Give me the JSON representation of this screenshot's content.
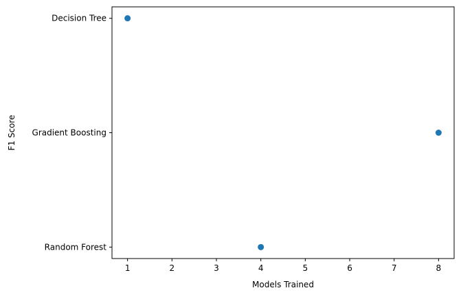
{
  "chart_data": {
    "type": "scatter",
    "title": "",
    "xlabel": "Models Trained",
    "ylabel": "F1 Score",
    "x_ticks": [
      1,
      2,
      3,
      4,
      5,
      6,
      7,
      8
    ],
    "y_categories": [
      "Random Forest",
      "Gradient Boosting",
      "Decision Tree"
    ],
    "xlim": [
      0.65,
      8.35
    ],
    "series": [
      {
        "color": "#1f77b4",
        "points": [
          {
            "x": 1,
            "y": "Decision Tree"
          },
          {
            "x": 8,
            "y": "Gradient Boosting"
          },
          {
            "x": 4,
            "y": "Random Forest"
          }
        ]
      }
    ],
    "grid": false,
    "legend": "none"
  }
}
